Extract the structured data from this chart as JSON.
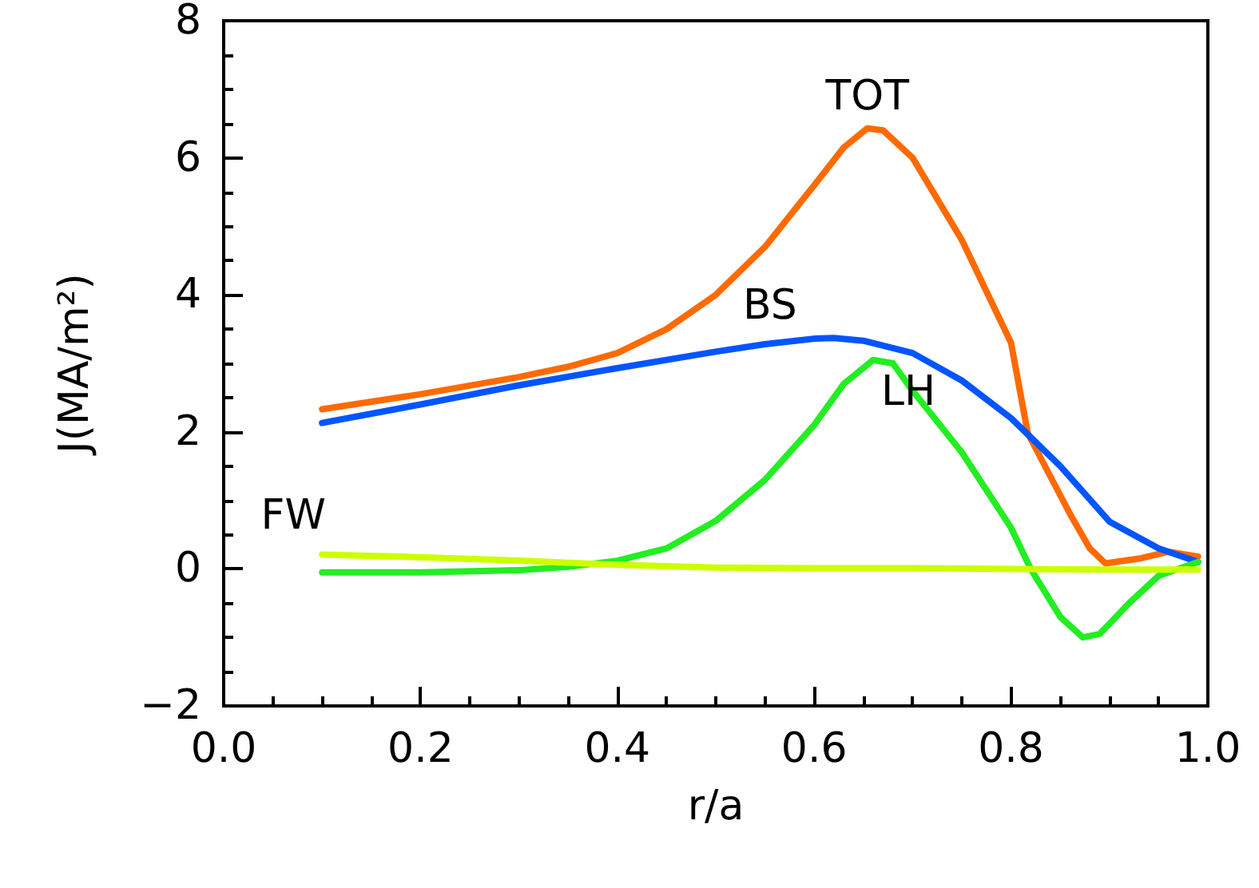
{
  "chart_data": {
    "type": "line",
    "xlabel": "r/a",
    "ylabel": "J(MA/m²)",
    "xlim": [
      0,
      1
    ],
    "ylim": [
      -2,
      8
    ],
    "xticks": [
      {
        "value": 0,
        "label": "0.0"
      },
      {
        "value": 0.2,
        "label": "0.2"
      },
      {
        "value": 0.4,
        "label": "0.4"
      },
      {
        "value": 0.6,
        "label": "0.6"
      },
      {
        "value": 0.8,
        "label": "0.8"
      },
      {
        "value": 1,
        "label": "1.0"
      }
    ],
    "yticks": [
      {
        "value": -2,
        "label": "−2"
      },
      0,
      2,
      4,
      6,
      8
    ],
    "grid": false,
    "legend": false,
    "marker": "none",
    "line_style": "solid",
    "series": [
      {
        "name": "TOT",
        "color": "#ff6a00",
        "x": [
          0.1,
          0.2,
          0.3,
          0.35,
          0.4,
          0.45,
          0.5,
          0.55,
          0.6,
          0.63,
          0.654,
          0.67,
          0.7,
          0.75,
          0.8,
          0.817,
          0.86,
          0.88,
          0.896,
          0.93,
          0.96,
          0.99
        ],
        "values": [
          2.33,
          2.55,
          2.8,
          2.95,
          3.15,
          3.5,
          4.0,
          4.7,
          5.6,
          6.15,
          6.43,
          6.4,
          6.0,
          4.8,
          3.3,
          1.98,
          0.8,
          0.3,
          0.08,
          0.15,
          0.25,
          0.18
        ]
      },
      {
        "name": "BS",
        "color": "#0055ff",
        "x": [
          0.1,
          0.2,
          0.3,
          0.4,
          0.5,
          0.55,
          0.6,
          0.62,
          0.65,
          0.7,
          0.75,
          0.8,
          0.85,
          0.9,
          0.95,
          0.99
        ],
        "values": [
          2.13,
          2.4,
          2.68,
          2.93,
          3.17,
          3.28,
          3.36,
          3.37,
          3.33,
          3.15,
          2.75,
          2.2,
          1.5,
          0.69,
          0.3,
          0.1
        ]
      },
      {
        "name": "LH",
        "color": "#22ee22",
        "x": [
          0.1,
          0.2,
          0.3,
          0.35,
          0.4,
          0.45,
          0.5,
          0.55,
          0.6,
          0.63,
          0.66,
          0.68,
          0.7,
          0.75,
          0.8,
          0.82,
          0.85,
          0.873,
          0.89,
          0.92,
          0.95,
          0.99
        ],
        "values": [
          -0.05,
          -0.05,
          -0.02,
          0.03,
          0.12,
          0.3,
          0.7,
          1.3,
          2.1,
          2.7,
          3.05,
          3.0,
          2.6,
          1.7,
          0.6,
          0.0,
          -0.7,
          -1.0,
          -0.95,
          -0.5,
          -0.1,
          0.1
        ]
      },
      {
        "name": "FW",
        "color": "#ccff00",
        "x": [
          0.1,
          0.2,
          0.3,
          0.4,
          0.5,
          0.6,
          0.7,
          0.8,
          0.9,
          0.99
        ],
        "values": [
          0.21,
          0.17,
          0.12,
          0.06,
          0.02,
          0.01,
          0.01,
          0.0,
          -0.01,
          -0.01
        ]
      }
    ]
  }
}
